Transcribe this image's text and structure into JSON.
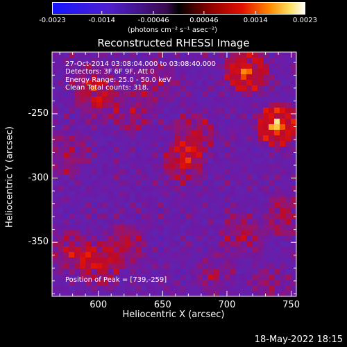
{
  "colorbar": {
    "tick_labels": [
      "-0.0023",
      "-0.0014",
      "-0.00046",
      "0.00046",
      "0.0014",
      "0.0023"
    ],
    "tick_values": [
      -0.0023,
      -0.0014,
      -0.00046,
      0.00046,
      0.0014,
      0.0023
    ],
    "units_label": "(photons cm⁻² s⁻¹ asec⁻²)"
  },
  "info": {
    "line1": "27-Oct-2014 03:08:04.000 to 03:08:40.000",
    "line2": "Detectors: 3F 6F 9F, Att 0",
    "line3": "Energy Range: 25.0 - 50.0 keV",
    "line4": "Clean     Total counts: 318.",
    "peak": "Position of Peak = [739,-259]"
  },
  "footer": {
    "timestamp": "18-May-2022 18:15"
  },
  "chart_data": {
    "type": "heatmap",
    "title": "Reconstructed RHESSI Image",
    "xlabel": "Heliocentric X (arcsec)",
    "ylabel": "Heliocentric Y (arcsec)",
    "xlim": [
      564,
      754
    ],
    "ylim": [
      -392,
      -202
    ],
    "x_ticks": [
      600,
      650,
      700,
      750
    ],
    "x_tick_labels": [
      "600",
      "650",
      "700",
      "750"
    ],
    "y_ticks": [
      -250,
      -300,
      -350
    ],
    "y_tick_labels": [
      "-250",
      "-300",
      "-350"
    ],
    "colormap": "blue-purple-red-yellow-white",
    "value_range": [
      -0.0023,
      0.0023
    ],
    "peak": [
      739,
      -259
    ],
    "sources": [
      {
        "x": 739,
        "y": -259,
        "value": 0.0023
      },
      {
        "x": 715,
        "y": -217,
        "value": 0.0019
      },
      {
        "x": 667,
        "y": -287,
        "value": 0.0013
      },
      {
        "x": 674,
        "y": -267,
        "value": 0.001
      },
      {
        "x": 580,
        "y": -357,
        "value": 0.0011
      },
      {
        "x": 600,
        "y": -367,
        "value": 0.0012
      },
      {
        "x": 620,
        "y": -352,
        "value": 0.001
      },
      {
        "x": 599,
        "y": -240,
        "value": 0.0009
      },
      {
        "x": 627,
        "y": -248,
        "value": 0.0008
      },
      {
        "x": 596,
        "y": -227,
        "value": 0.0008
      },
      {
        "x": 645,
        "y": -225,
        "value": 0.0007
      },
      {
        "x": 745,
        "y": -328,
        "value": 0.001
      },
      {
        "x": 712,
        "y": -345,
        "value": 0.0009
      },
      {
        "x": 575,
        "y": -282,
        "value": 0.0008
      },
      {
        "x": 690,
        "y": -375,
        "value": 0.0006
      },
      {
        "x": 735,
        "y": -385,
        "value": 0.0006
      }
    ]
  }
}
